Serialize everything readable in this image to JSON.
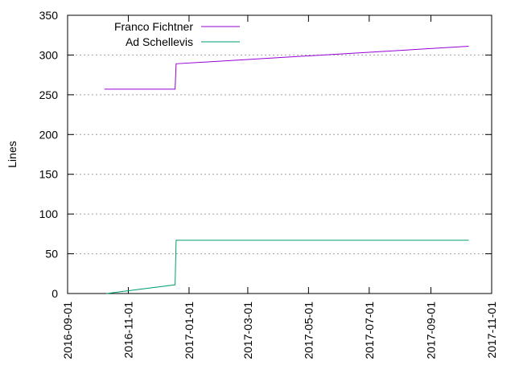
{
  "chart_data": {
    "type": "line",
    "ylabel": "Lines",
    "xlim": [
      "2016-09-01",
      "2017-11-01"
    ],
    "xticks": [
      "2016-09-01",
      "2016-11-01",
      "2017-01-01",
      "2017-03-01",
      "2017-05-01",
      "2017-07-01",
      "2017-09-01",
      "2017-11-01"
    ],
    "ylim": [
      0,
      350
    ],
    "yticks": [
      0,
      50,
      100,
      150,
      200,
      250,
      300,
      350
    ],
    "grid": true,
    "legend": "top-left",
    "series": [
      {
        "name": "Franco Fichtner",
        "color": "#9400d3",
        "x": [
          "2016-10-08",
          "2016-12-18",
          "2016-12-19",
          "2017-10-09"
        ],
        "values": [
          257,
          257,
          289,
          311
        ]
      },
      {
        "name": "Ad Schellevis",
        "color": "#009e73",
        "x": [
          "2016-10-10",
          "2016-12-18",
          "2016-12-19",
          "2017-10-09"
        ],
        "values": [
          0,
          11,
          67,
          67
        ]
      }
    ]
  }
}
